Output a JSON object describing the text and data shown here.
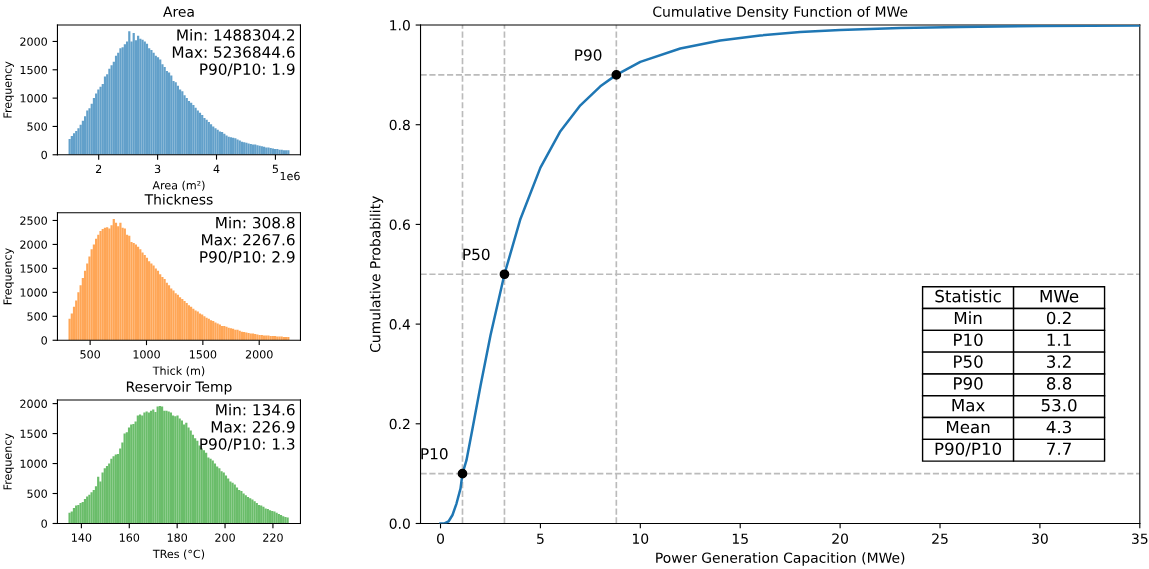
{
  "chart_data": [
    {
      "type": "histogram",
      "title": "Area",
      "xlabel": "Area (m²)",
      "ylabel": "Frequency",
      "color": "#62a0ca",
      "bins": [
        1.4883,
        1.5258,
        1.5633,
        1.6008,
        1.6383,
        1.6758,
        1.7133,
        1.7508,
        1.7883,
        1.8258,
        1.8633,
        1.9008,
        1.9383,
        1.9758,
        2.0133,
        2.0508,
        2.0883,
        2.1258,
        2.1633,
        2.2008,
        2.2383,
        2.2758,
        2.3133,
        2.3508,
        2.3883,
        2.4258,
        2.4633,
        2.5008,
        2.5383,
        2.5758,
        2.6133,
        2.6508,
        2.6883,
        2.7258,
        2.7633,
        2.8008,
        2.8383,
        2.8758,
        2.9133,
        2.9508,
        2.9883,
        3.0258,
        3.0633,
        3.1008,
        3.1383,
        3.1758,
        3.2133,
        3.2508,
        3.2883,
        3.3258,
        3.3633,
        3.4008,
        3.4383,
        3.4758,
        3.5133,
        3.5508,
        3.5883,
        3.6258,
        3.6633,
        3.7008,
        3.7383,
        3.7758,
        3.8133,
        3.8508,
        3.8883,
        3.9258,
        3.9633,
        4.0008,
        4.0383,
        4.0758,
        4.1133,
        4.1508,
        4.1883,
        4.2258,
        4.2633,
        4.3008,
        4.3383,
        4.3758,
        4.4133,
        4.4508,
        4.4883,
        4.5258,
        4.5633,
        4.6008,
        4.6383,
        4.6758,
        4.7133,
        4.7508,
        4.7883,
        4.8258,
        4.8633,
        4.9008,
        4.9383,
        4.9758,
        5.0133,
        5.0508,
        5.0883,
        5.1258,
        5.1633,
        5.2008,
        5.2383
      ],
      "values": [
        280,
        330,
        380,
        420,
        470,
        530,
        600,
        680,
        780,
        820,
        900,
        1000,
        1080,
        1150,
        1200,
        1250,
        1380,
        1420,
        1520,
        1580,
        1640,
        1750,
        1800,
        1880,
        1900,
        1950,
        2000,
        2180,
        2000,
        2150,
        2020,
        2100,
        2050,
        2030,
        2000,
        1960,
        1880,
        1850,
        1800,
        1750,
        1720,
        1680,
        1600,
        1550,
        1480,
        1450,
        1400,
        1300,
        1280,
        1220,
        1150,
        1120,
        1050,
        1000,
        950,
        920,
        880,
        830,
        780,
        740,
        700,
        650,
        620,
        580,
        540,
        500,
        470,
        440,
        410,
        400,
        370,
        340,
        320,
        310,
        300,
        290,
        270,
        250,
        230,
        220,
        210,
        200,
        190,
        180,
        180,
        170,
        160,
        150,
        140,
        130,
        130,
        120,
        110,
        100,
        100,
        90,
        90,
        80,
        80,
        80
      ],
      "xlim": [
        1.3,
        5.425
      ],
      "ylim": [
        0,
        2290
      ],
      "xticks": [
        2,
        3,
        4,
        5
      ],
      "yticks": [
        0,
        500,
        1000,
        1500,
        2000
      ],
      "annotations": [
        "Min: 1488304.2\nMax: 5236844.6\nP90/P10: 1.9",
        "1e6"
      ]
    },
    {
      "type": "histogram",
      "title": "Thickness",
      "xlabel": "Thick (m)",
      "ylabel": "Frequency",
      "color": "#ffa656",
      "bins": [
        308,
        327.6,
        347.2,
        366.8,
        386.4,
        406,
        425.6,
        445.2,
        464.8,
        484.4,
        504,
        523.6,
        543.2,
        562.8,
        582.4,
        602,
        621.6,
        641.2,
        660.8,
        680.4,
        700,
        719.6,
        739.2,
        758.8,
        778.4,
        798,
        817.6,
        837.2,
        856.8,
        876.4,
        896,
        915.6,
        935.2,
        954.8,
        974.4,
        994,
        1013.6,
        1033.2,
        1052.8,
        1072.4,
        1092,
        1111.6,
        1131.2,
        1150.8,
        1170.4,
        1190,
        1209.6,
        1229.2,
        1248.8,
        1268.4,
        1288,
        1307.6,
        1327.2,
        1346.8,
        1366.4,
        1386,
        1405.6,
        1425.2,
        1444.8,
        1464.4,
        1484,
        1503.6,
        1523.2,
        1542.8,
        1562.4,
        1582,
        1601.6,
        1621.2,
        1640.8,
        1660.4,
        1680,
        1699.6,
        1719.2,
        1738.8,
        1758.4,
        1778,
        1797.6,
        1817.2,
        1836.8,
        1856.4,
        1876,
        1895.6,
        1915.2,
        1934.8,
        1954.4,
        1974,
        1993.6,
        2013.2,
        2032.8,
        2052.4,
        2072,
        2091.6,
        2111.2,
        2130.8,
        2150.4,
        2170,
        2189.6,
        2209.2,
        2228.8,
        2248.4,
        2268
      ],
      "values": [
        450,
        560,
        700,
        830,
        1000,
        1150,
        1300,
        1450,
        1600,
        1750,
        1900,
        2000,
        2120,
        2200,
        2280,
        2320,
        2350,
        2360,
        2330,
        2400,
        2530,
        2450,
        2380,
        2450,
        2350,
        2330,
        2200,
        2180,
        2050,
        2030,
        2000,
        1950,
        1900,
        1830,
        1780,
        1720,
        1650,
        1600,
        1560,
        1500,
        1450,
        1380,
        1320,
        1280,
        1200,
        1150,
        1080,
        1040,
        980,
        950,
        900,
        860,
        820,
        780,
        730,
        700,
        660,
        620,
        600,
        560,
        540,
        500,
        470,
        450,
        420,
        400,
        370,
        350,
        330,
        300,
        300,
        280,
        260,
        250,
        240,
        220,
        220,
        200,
        180,
        170,
        160,
        150,
        140,
        140,
        130,
        120,
        110,
        110,
        100,
        100,
        100,
        90,
        90,
        90,
        80,
        80,
        80,
        70,
        70,
        70
      ],
      "xlim": [
        210,
        2366
      ],
      "ylim": [
        0,
        2660
      ],
      "xticks": [
        500,
        1000,
        1500,
        2000
      ],
      "yticks": [
        0,
        500,
        1000,
        1500,
        2000,
        2500
      ],
      "annotations": [
        "Min: 308.8\nMax: 2267.6\nP90/P10: 2.9"
      ]
    },
    {
      "type": "histogram",
      "title": "Reservoir Temp",
      "xlabel": "TRes (°C)",
      "ylabel": "Frequency",
      "color": "#6abd6a",
      "bins": [
        134.6,
        135.52,
        136.44,
        137.36,
        138.28,
        139.2,
        140.12,
        141.04,
        141.96,
        142.88,
        143.8,
        144.72,
        145.64,
        146.56,
        147.48,
        148.4,
        149.32,
        150.24,
        151.16,
        152.08,
        153,
        153.92,
        154.84,
        155.76,
        156.68,
        157.6,
        158.52,
        159.44,
        160.36,
        161.28,
        162.2,
        163.12,
        164.04,
        164.96,
        165.88,
        166.8,
        167.72,
        168.64,
        169.56,
        170.48,
        171.4,
        172.32,
        173.24,
        174.16,
        175.08,
        176,
        176.92,
        177.84,
        178.76,
        179.68,
        180.6,
        181.52,
        182.44,
        183.36,
        184.28,
        185.2,
        186.12,
        187.04,
        187.96,
        188.88,
        189.8,
        190.72,
        191.64,
        192.56,
        193.48,
        194.4,
        195.32,
        196.24,
        197.16,
        198.08,
        199,
        199.92,
        200.84,
        201.76,
        202.68,
        203.6,
        204.52,
        205.44,
        206.36,
        207.28,
        208.2,
        209.12,
        210.04,
        210.96,
        211.88,
        212.8,
        213.72,
        214.64,
        215.56,
        216.48,
        217.4,
        218.32,
        219.24,
        220.16,
        221.08,
        222,
        222.92,
        223.84,
        224.76,
        225.68,
        226.6
      ],
      "values": [
        180,
        200,
        260,
        300,
        310,
        340,
        360,
        410,
        450,
        480,
        520,
        560,
        620,
        780,
        700,
        850,
        920,
        960,
        1000,
        1080,
        1120,
        1150,
        1160,
        1250,
        1350,
        1500,
        1520,
        1600,
        1650,
        1660,
        1700,
        1800,
        1820,
        1800,
        1850,
        1870,
        1850,
        1880,
        1900,
        1860,
        1950,
        1960,
        1950,
        1880,
        1880,
        1870,
        1850,
        1800,
        1790,
        1800,
        1750,
        1720,
        1650,
        1680,
        1600,
        1550,
        1480,
        1420,
        1380,
        1300,
        1250,
        1220,
        1180,
        1100,
        1080,
        1050,
        1000,
        950,
        920,
        870,
        850,
        800,
        750,
        700,
        680,
        650,
        600,
        560,
        540,
        500,
        470,
        440,
        420,
        400,
        370,
        340,
        310,
        300,
        280,
        250,
        240,
        220,
        210,
        200,
        180,
        160,
        140,
        120,
        110,
        100
      ],
      "xlim": [
        130,
        231.5
      ],
      "ylim": [
        0,
        2060
      ],
      "xticks": [
        140,
        160,
        180,
        200,
        220
      ],
      "yticks": [
        0,
        500,
        1000,
        1500,
        2000
      ],
      "annotations": [
        "Min: 134.6\nMax: 226.9\nP90/P10: 1.3"
      ]
    },
    {
      "type": "line",
      "title": "Cumulative Density Function of MWe",
      "xlabel": "Power Generation Capacition (MWe)",
      "ylabel": "Cumulative Probability",
      "series": [
        {
          "type": "line",
          "color": "#1f77b4",
          "marker": "none",
          "x": [
            0,
            0.2,
            0.4,
            0.6,
            0.8,
            1.0,
            1.1,
            1.3,
            1.6,
            2.0,
            2.5,
            3.2,
            4,
            5,
            6,
            7,
            8,
            8.8,
            10,
            12,
            14,
            16,
            18,
            20,
            23,
            26,
            30,
            35
          ],
          "values": [
            0,
            0,
            0.004,
            0.017,
            0.04,
            0.07,
            0.1,
            0.127,
            0.19,
            0.276,
            0.377,
            0.5,
            0.611,
            0.714,
            0.787,
            0.839,
            0.877,
            0.9,
            0.926,
            0.953,
            0.969,
            0.979,
            0.986,
            0.99,
            0.994,
            0.996,
            0.998,
            0.999
          ]
        },
        {
          "type": "scatter",
          "color": "#000000",
          "marker": "circle",
          "x": [
            1.1,
            3.2,
            8.8
          ],
          "values": [
            0.1,
            0.5,
            0.9
          ]
        }
      ],
      "xlim": [
        -1,
        35
      ],
      "ylim": [
        0,
        1
      ],
      "xticks": [
        0,
        5,
        10,
        15,
        20,
        25,
        30,
        35
      ],
      "yticks": [
        {
          "value": 0,
          "label": "0.0"
        },
        0.2,
        0.4,
        0.6,
        0.8,
        {
          "value": 1,
          "label": "1.0"
        }
      ],
      "ref_lines": [
        {
          "axis": "x",
          "value": 1.1,
          "color": "#bbbbbb",
          "line_style": "dashed"
        },
        {
          "axis": "x",
          "value": 3.2,
          "color": "#bbbbbb",
          "line_style": "dashed"
        },
        {
          "axis": "x",
          "value": 8.8,
          "color": "#bbbbbb",
          "line_style": "dashed"
        },
        {
          "axis": "y",
          "value": 0.1,
          "color": "#bbbbbb",
          "line_style": "dashed"
        },
        {
          "axis": "y",
          "value": 0.5,
          "color": "#bbbbbb",
          "line_style": "dashed"
        },
        {
          "axis": "y",
          "value": 0.9,
          "color": "#bbbbbb",
          "line_style": "dashed"
        }
      ],
      "annotations": [
        {
          "text": "P10",
          "x": 1.1,
          "y": 0.1
        },
        {
          "text": "P50",
          "x": 3.2,
          "y": 0.5
        },
        {
          "text": "P90",
          "x": 8.8,
          "y": 0.9
        },
        "Statistic",
        "MWe",
        "Min",
        "0.2",
        "P10",
        "1.1",
        "P50",
        "3.2",
        "P90",
        "8.8",
        "Max",
        "53.0",
        "Mean",
        "4.3",
        "P90/P10",
        "7.7"
      ]
    }
  ]
}
